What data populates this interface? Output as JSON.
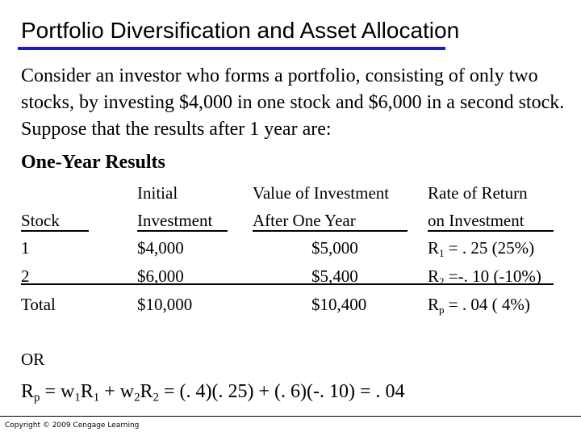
{
  "slide": {
    "title": "Portfolio Diversification and Asset Allocation",
    "intro": "Consider an investor who forms a portfolio, consisting of only two stocks, by investing $4,000 in one stock and $6,000 in a second stock. Suppose that the results after 1 year are:",
    "results_heading": "One-Year Results"
  },
  "table": {
    "headers": {
      "stock": [
        "",
        "Stock"
      ],
      "investment": [
        "Initial",
        "Investment"
      ],
      "value": [
        "Value of Investment",
        "After One Year"
      ],
      "return": [
        "Rate of Return",
        "on Investment"
      ]
    },
    "rows": [
      {
        "stock": "1",
        "investment": "$4,000",
        "value": "$5,000",
        "ret_var": "R",
        "ret_sub": "1",
        "ret_rest": " = . 25 (25%)"
      },
      {
        "stock": "2",
        "investment": "$6,000",
        "value": "$5,400",
        "ret_var": "R",
        "ret_sub": "2",
        "ret_rest": " =-. 10 (-10%)"
      },
      {
        "stock": "Total",
        "investment": "$10,000",
        "value": "$10,400",
        "ret_var": "R",
        "ret_sub": "p",
        "ret_rest": " = . 04 ( 4%)"
      }
    ]
  },
  "or_label": "OR",
  "formula": {
    "r": "R",
    "p": "p",
    "eq1": " = w",
    "s1": "1",
    "r1": "R",
    "s1b": "1",
    "plus": " + w",
    "s2": "2",
    "r2": "R",
    "s2b": "2",
    "rest": " = (. 4)(. 25) + (. 6)(-. 10) = . 04"
  },
  "footer": {
    "copyright": "Copyright © 2009 Cengage Learning"
  }
}
